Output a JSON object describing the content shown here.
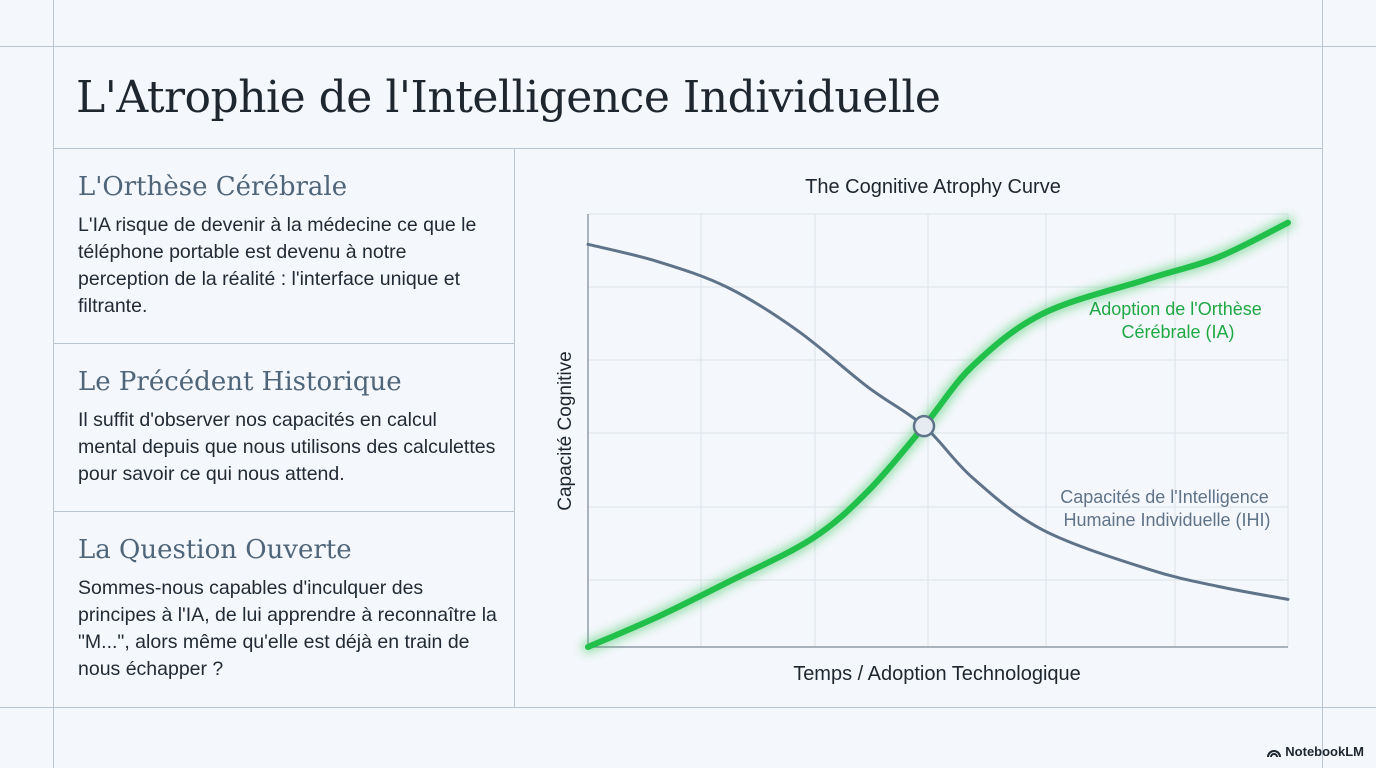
{
  "title": "L'Atrophie de l'Intelligence Individuelle",
  "sections": [
    {
      "heading": "L'Orthèse Cérébrale",
      "body": "L'IA risque de devenir à la médecine ce que le téléphone portable est devenu à notre perception de la réalité : l'interface unique et filtrante."
    },
    {
      "heading": "Le Précédent Historique",
      "body": "Il suffit d'observer nos capacités en calcul mental depuis que nous utilisons des calculettes pour savoir ce qui nous attend."
    },
    {
      "heading": "La Question Ouverte",
      "body": "Sommes-nous capables d'inculquer des principes à l'IA, de lui apprendre à reconnaître la \"M...\", alors même qu'elle est déjà en train de nous échapper ?"
    }
  ],
  "chart_data": {
    "type": "line",
    "title": "The Cognitive Atrophy Curve",
    "xlabel": "Temps / Adoption Technologique",
    "ylabel": "Capacité Cognitive",
    "xlim": [
      0,
      1
    ],
    "ylim": [
      0,
      1
    ],
    "grid": true,
    "series": [
      {
        "name": "Adoption de l'Orthèse Cérébrale (IA)",
        "color": "#20c04a",
        "x": [
          0,
          0.1,
          0.2,
          0.32,
          0.4,
          0.48,
          0.55,
          0.65,
          0.8,
          0.9,
          1.0
        ],
        "y": [
          0.0,
          0.07,
          0.15,
          0.25,
          0.36,
          0.51,
          0.65,
          0.77,
          0.85,
          0.9,
          0.98
        ]
      },
      {
        "name": "Capacités de l'Intelligence Humaine Individuelle (IHI)",
        "color": "#5f7389",
        "x": [
          0,
          0.1,
          0.2,
          0.3,
          0.4,
          0.48,
          0.55,
          0.65,
          0.8,
          0.9,
          1.0
        ],
        "y": [
          0.93,
          0.89,
          0.83,
          0.73,
          0.6,
          0.51,
          0.39,
          0.27,
          0.18,
          0.14,
          0.11
        ]
      }
    ],
    "intersection": {
      "x": 0.48,
      "y": 0.51
    }
  },
  "brand": "NotebookLM"
}
